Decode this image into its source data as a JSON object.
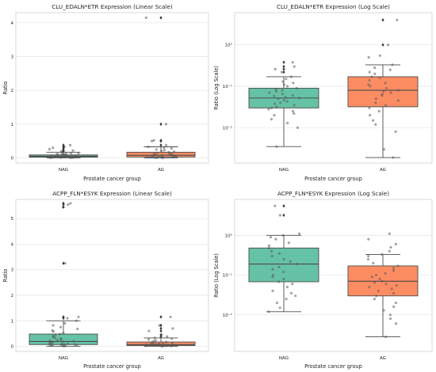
{
  "chart_data": [
    {
      "type": "box",
      "title": "CLU_EDALN*ETR Expression (Linear Scale)",
      "xlabel": "Prostate cancer group",
      "ylabel": "Ratio",
      "scale": "linear",
      "ylim": [
        -0.15,
        4.3
      ],
      "yticks": [
        0,
        1,
        2,
        3,
        4
      ],
      "ytick_labels": [
        "0",
        "1",
        "2",
        "3",
        "4"
      ],
      "categories": [
        "NAG",
        "AG"
      ],
      "colors": [
        "#66c2a5",
        "#fc8d62"
      ],
      "boxes": [
        {
          "whislo": 0.0,
          "q1": 0.025,
          "med": 0.05,
          "q3": 0.09,
          "whishi": 0.17
        },
        {
          "whislo": 0.0,
          "q1": 0.03,
          "med": 0.08,
          "q3": 0.17,
          "whishi": 0.33
        }
      ],
      "fliers": [
        [
          0.2,
          0.22,
          0.26,
          0.3,
          0.33,
          0.38
        ],
        [
          0.38,
          0.5,
          0.52,
          1.0,
          4.15
        ]
      ],
      "points": [
        [
          0.003,
          0.006,
          0.01,
          0.012,
          0.016,
          0.02,
          0.022,
          0.025,
          0.028,
          0.03,
          0.033,
          0.036,
          0.04,
          0.042,
          0.045,
          0.048,
          0.05,
          0.053,
          0.056,
          0.06,
          0.063,
          0.066,
          0.07,
          0.075,
          0.08,
          0.085,
          0.09,
          0.1,
          0.11,
          0.12,
          0.13,
          0.14,
          0.15,
          0.16,
          0.2,
          0.22,
          0.26,
          0.3,
          0.33,
          0.38
        ],
        [
          0.002,
          0.005,
          0.01,
          0.015,
          0.02,
          0.025,
          0.03,
          0.035,
          0.04,
          0.045,
          0.05,
          0.06,
          0.065,
          0.07,
          0.075,
          0.08,
          0.09,
          0.1,
          0.11,
          0.12,
          0.13,
          0.15,
          0.17,
          0.19,
          0.21,
          0.23,
          0.25,
          0.28,
          0.3,
          0.33,
          0.38,
          0.5,
          0.52,
          1.0,
          4.15
        ]
      ]
    },
    {
      "type": "box",
      "title": "CLU_EDALN*ETR Expression (Log Scale)",
      "xlabel": "Prostate cancer group",
      "ylabel": "Ratio (Log Scale)",
      "scale": "log",
      "ylim": [
        0.0014,
        6.0
      ],
      "yticks": [
        0.01,
        0.1,
        1
      ],
      "ytick_labels": [
        "10⁻²",
        "10⁻¹",
        "10⁰"
      ],
      "categories": [
        "NAG",
        "AG"
      ],
      "colors": [
        "#66c2a5",
        "#fc8d62"
      ],
      "boxes": [
        {
          "whislo": 0.0035,
          "q1": 0.03,
          "med": 0.052,
          "q3": 0.09,
          "whishi": 0.17
        },
        {
          "whislo": 0.0019,
          "q1": 0.032,
          "med": 0.08,
          "q3": 0.17,
          "whishi": 0.33
        }
      ],
      "fliers": [
        [
          0.22,
          0.26,
          0.3,
          0.38
        ],
        [
          1.0,
          4.0
        ]
      ],
      "points": [
        [
          0.0035,
          0.01,
          0.013,
          0.016,
          0.02,
          0.022,
          0.025,
          0.028,
          0.03,
          0.032,
          0.035,
          0.038,
          0.04,
          0.043,
          0.046,
          0.05,
          0.052,
          0.055,
          0.058,
          0.06,
          0.065,
          0.07,
          0.075,
          0.08,
          0.085,
          0.09,
          0.1,
          0.11,
          0.12,
          0.13,
          0.15,
          0.17,
          0.22,
          0.26,
          0.3,
          0.38
        ],
        [
          0.0019,
          0.003,
          0.008,
          0.012,
          0.015,
          0.02,
          0.025,
          0.03,
          0.035,
          0.04,
          0.045,
          0.05,
          0.06,
          0.065,
          0.07,
          0.075,
          0.08,
          0.09,
          0.1,
          0.11,
          0.12,
          0.14,
          0.16,
          0.17,
          0.2,
          0.22,
          0.25,
          0.28,
          0.33,
          0.5,
          0.55,
          1.0,
          4.0
        ]
      ]
    },
    {
      "type": "box",
      "title": "ACPP_FLN*ESYK Expression (Linear Scale)",
      "xlabel": "Prostate cancer group",
      "ylabel": "Ratio",
      "scale": "linear",
      "ylim": [
        -0.2,
        5.75
      ],
      "yticks": [
        0,
        1,
        2,
        3,
        4,
        5
      ],
      "ytick_labels": [
        "0",
        "1",
        "2",
        "3",
        "4",
        "5"
      ],
      "categories": [
        "NAG",
        "AG"
      ],
      "colors": [
        "#66c2a5",
        "#fc8d62"
      ],
      "boxes": [
        {
          "whislo": 0.0,
          "q1": 0.07,
          "med": 0.19,
          "q3": 0.48,
          "whishi": 1.0
        },
        {
          "whislo": 0.0,
          "q1": 0.03,
          "med": 0.07,
          "q3": 0.17,
          "whishi": 0.33
        }
      ],
      "fliers": [
        [
          1.1,
          1.15,
          3.25,
          5.45,
          5.55,
          5.6
        ],
        [
          0.38,
          0.45,
          0.6,
          0.7,
          0.82,
          1.15
        ]
      ],
      "points": [
        [
          0.005,
          0.01,
          0.02,
          0.03,
          0.04,
          0.05,
          0.06,
          0.07,
          0.08,
          0.09,
          0.1,
          0.12,
          0.14,
          0.16,
          0.18,
          0.19,
          0.2,
          0.22,
          0.25,
          0.28,
          0.3,
          0.33,
          0.36,
          0.4,
          0.45,
          0.48,
          0.52,
          0.58,
          0.62,
          0.68,
          0.75,
          0.82,
          0.9,
          1.0,
          1.1,
          1.15,
          3.25,
          5.45,
          5.55,
          5.6
        ],
        [
          0.002,
          0.005,
          0.01,
          0.015,
          0.02,
          0.025,
          0.03,
          0.035,
          0.04,
          0.045,
          0.05,
          0.055,
          0.06,
          0.065,
          0.07,
          0.08,
          0.09,
          0.1,
          0.11,
          0.12,
          0.13,
          0.15,
          0.17,
          0.2,
          0.23,
          0.27,
          0.3,
          0.33,
          0.38,
          0.45,
          0.6,
          0.7,
          0.82,
          1.15
        ]
      ]
    },
    {
      "type": "box",
      "title": "ACPP_FLN*ESYK Expression (Log Scale)",
      "xlabel": "Prostate cancer group",
      "ylabel": "Ratio (Log Scale)",
      "scale": "log",
      "ylim": [
        0.0012,
        8.0
      ],
      "yticks": [
        0.01,
        0.1,
        1
      ],
      "ytick_labels": [
        "10⁻²",
        "10⁻¹",
        "10⁰"
      ],
      "categories": [
        "NAG",
        "AG"
      ],
      "colors": [
        "#66c2a5",
        "#fc8d62"
      ],
      "boxes": [
        {
          "whislo": 0.012,
          "q1": 0.068,
          "med": 0.19,
          "q3": 0.48,
          "whishi": 1.0
        },
        {
          "whislo": 0.0028,
          "q1": 0.03,
          "med": 0.07,
          "q3": 0.17,
          "whishi": 0.33
        }
      ],
      "fliers": [
        [
          3.2,
          5.5
        ],
        []
      ],
      "points": [
        [
          0.012,
          0.015,
          0.02,
          0.025,
          0.03,
          0.035,
          0.04,
          0.05,
          0.06,
          0.068,
          0.08,
          0.09,
          0.1,
          0.12,
          0.14,
          0.16,
          0.19,
          0.22,
          0.25,
          0.3,
          0.35,
          0.4,
          0.48,
          0.55,
          0.65,
          0.8,
          0.9,
          1.0,
          1.1,
          3.2,
          5.5
        ],
        [
          0.0028,
          0.006,
          0.008,
          0.01,
          0.013,
          0.016,
          0.02,
          0.025,
          0.03,
          0.035,
          0.04,
          0.045,
          0.05,
          0.055,
          0.06,
          0.065,
          0.07,
          0.08,
          0.09,
          0.1,
          0.11,
          0.13,
          0.15,
          0.17,
          0.2,
          0.25,
          0.3,
          0.33,
          0.4,
          0.5,
          0.6,
          0.8,
          1.1
        ]
      ]
    }
  ]
}
